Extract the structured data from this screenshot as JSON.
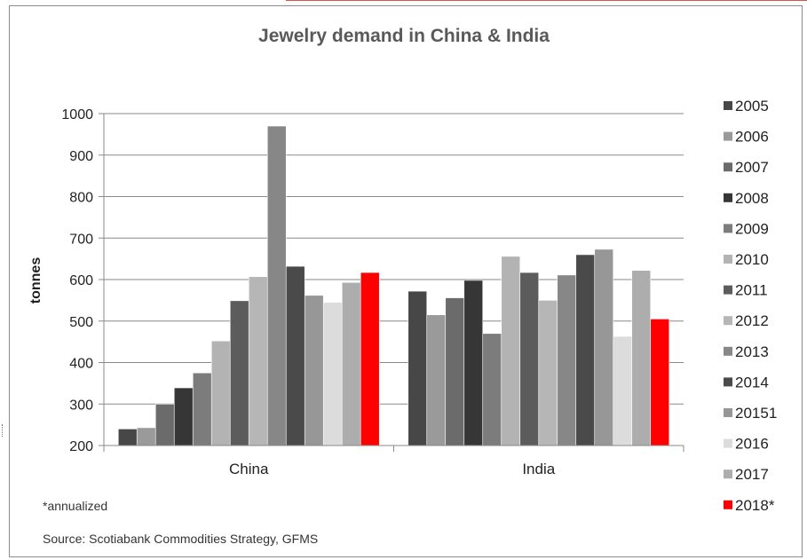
{
  "chart_data": {
    "type": "bar",
    "title": "Jewelry demand in China & India",
    "ylabel": "tonnes",
    "xlabel": "",
    "ylim": [
      200,
      1000
    ],
    "yticks": [
      200,
      300,
      400,
      500,
      600,
      700,
      800,
      900,
      1000
    ],
    "grid": true,
    "legend_position": "right",
    "categories": [
      "China",
      "India"
    ],
    "series": [
      {
        "name": "2005",
        "color": "#474747",
        "values": [
          240,
          572
        ]
      },
      {
        "name": "2006",
        "color": "#9a9a9a",
        "values": [
          243,
          515
        ]
      },
      {
        "name": "2007",
        "color": "#6b6b6b",
        "values": [
          300,
          556
        ]
      },
      {
        "name": "2008",
        "color": "#363636",
        "values": [
          339,
          598
        ]
      },
      {
        "name": "2009",
        "color": "#7c7c7c",
        "values": [
          375,
          470
        ]
      },
      {
        "name": "2010",
        "color": "#b3b3b3",
        "values": [
          452,
          656
        ]
      },
      {
        "name": "2011",
        "color": "#5c5c5c",
        "values": [
          549,
          617
        ]
      },
      {
        "name": "2012",
        "color": "#b6b6b6",
        "values": [
          607,
          550
        ]
      },
      {
        "name": "2013",
        "color": "#878787",
        "values": [
          970,
          611
        ]
      },
      {
        "name": "2014",
        "color": "#4a4a4a",
        "values": [
          632,
          660
        ]
      },
      {
        "name": "20151",
        "color": "#979797",
        "values": [
          562,
          673
        ]
      },
      {
        "name": "2016",
        "color": "#dcdcdc",
        "values": [
          545,
          463
        ]
      },
      {
        "name": "2017",
        "color": "#adadad",
        "values": [
          593,
          622
        ]
      },
      {
        "name": "2018*",
        "color": "#ff0000",
        "values": [
          617,
          505
        ]
      }
    ]
  },
  "notes": {
    "annualized": "*annualized",
    "source": "Source: Scotiabank Commodities Strategy, GFMS"
  }
}
